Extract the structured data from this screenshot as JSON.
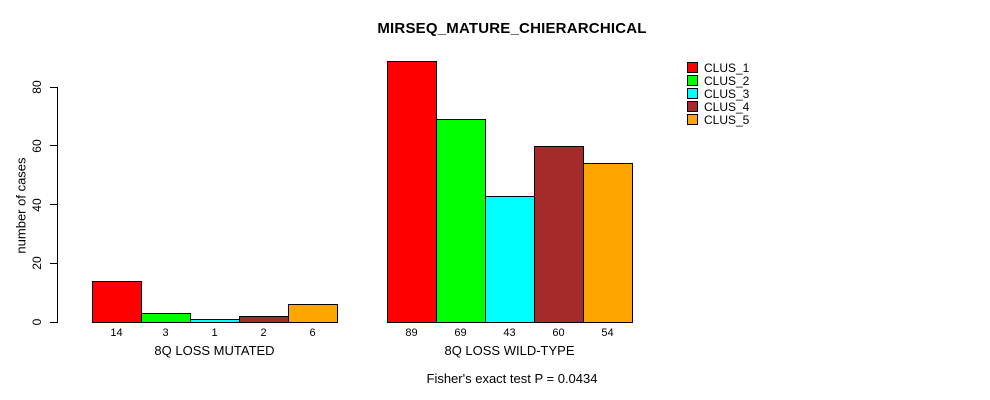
{
  "chart_data": {
    "type": "bar",
    "title": "MIRSEQ_MATURE_CHIERARCHICAL",
    "ylabel": "number of cases",
    "yticks": [
      0,
      20,
      40,
      60,
      80
    ],
    "ylim": [
      0,
      89
    ],
    "grid": false,
    "legend_position": "right",
    "series_names": [
      "CLUS_1",
      "CLUS_2",
      "CLUS_3",
      "CLUS_4",
      "CLUS_5"
    ],
    "colors": [
      "#FF0000",
      "#00FF00",
      "#00FFFF",
      "#A52A2A",
      "#FFA500"
    ],
    "groups": [
      {
        "label": "8Q LOSS MUTATED",
        "values": [
          14,
          3,
          1,
          2,
          6
        ]
      },
      {
        "label": "8Q LOSS WILD-TYPE",
        "values": [
          89,
          69,
          43,
          60,
          54
        ]
      }
    ],
    "annotation": "Fisher's exact test P = 0.0434"
  }
}
